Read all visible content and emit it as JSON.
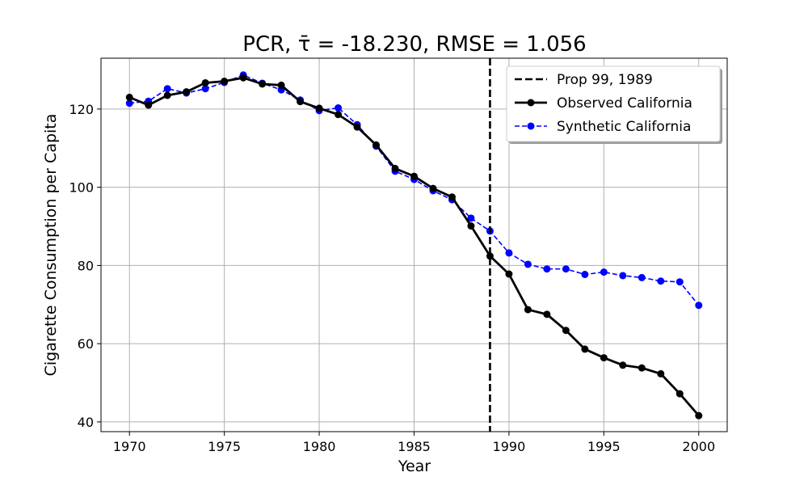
{
  "chart_data": {
    "type": "line",
    "title": "PCR, τ̄ = -18.230, RMSE = 1.056",
    "xlabel": "Year",
    "ylabel": "Cigarette Consumption per Capita",
    "xlim": [
      1968.5,
      2001.5
    ],
    "ylim": [
      37.5,
      133
    ],
    "xticks": [
      1970,
      1975,
      1980,
      1985,
      1990,
      1995,
      2000
    ],
    "yticks": [
      40,
      60,
      80,
      100,
      120
    ],
    "grid": true,
    "legend_position": "top-right",
    "vline": {
      "x": 1989,
      "label": "Prop 99, 1989",
      "color": "#000000",
      "style": "dashed"
    },
    "x": [
      1970,
      1971,
      1972,
      1973,
      1974,
      1975,
      1976,
      1977,
      1978,
      1979,
      1980,
      1981,
      1982,
      1983,
      1984,
      1985,
      1986,
      1987,
      1988,
      1989,
      1990,
      1991,
      1992,
      1993,
      1994,
      1995,
      1996,
      1997,
      1998,
      1999,
      2000
    ],
    "series": [
      {
        "name": "Observed California",
        "color": "#000000",
        "style": "solid",
        "values": [
          123.0,
          121.0,
          123.5,
          124.4,
          126.7,
          127.1,
          128.0,
          126.4,
          126.1,
          121.9,
          120.2,
          118.6,
          115.4,
          110.8,
          104.8,
          102.8,
          99.7,
          97.5,
          90.1,
          82.4,
          77.8,
          68.7,
          67.5,
          63.4,
          58.6,
          56.4,
          54.5,
          53.8,
          52.3,
          47.2,
          41.6
        ]
      },
      {
        "name": "Synthetic California",
        "color": "#0000ff",
        "style": "dashed",
        "values": [
          121.5,
          122.0,
          125.2,
          124.1,
          125.2,
          126.8,
          128.7,
          126.6,
          124.9,
          122.3,
          119.6,
          120.3,
          116.0,
          110.5,
          104.1,
          102.0,
          99.1,
          96.8,
          92.1,
          88.8,
          83.2,
          80.3,
          79.1,
          79.1,
          77.7,
          78.3,
          77.4,
          76.9,
          76.0,
          75.8,
          69.8
        ]
      }
    ]
  }
}
